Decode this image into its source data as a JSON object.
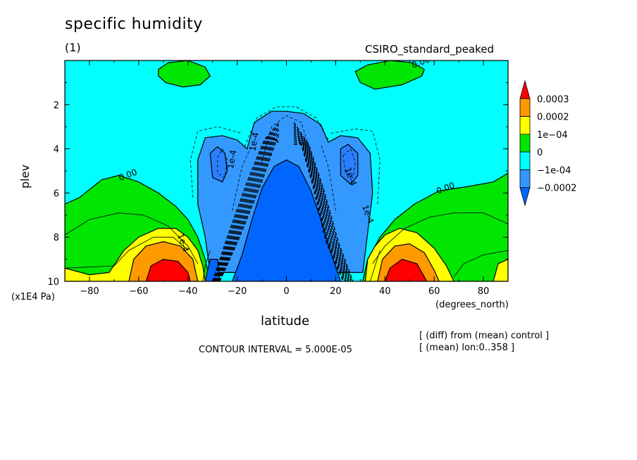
{
  "chart_data": {
    "type": "heatmap",
    "title": "specific humidity",
    "subtitle": "(1)",
    "model_label": "CSIRO_standard_peaked",
    "xlabel": "latitude",
    "ylabel": "plev",
    "y_units": "(x1E4 Pa)",
    "x_units": "(degrees_north)",
    "xlim": [
      -90,
      90
    ],
    "ylim": [
      10,
      0
    ],
    "x_ticks": [
      -80,
      -60,
      -40,
      -20,
      0,
      20,
      40,
      60,
      80
    ],
    "y_ticks": [
      2,
      4,
      6,
      8,
      10
    ],
    "contour_interval_text": "CONTOUR INTERVAL = 5.000E-05",
    "notes": [
      "[ (diff) from (mean) control ]",
      "[ (mean) lon:0..358 ]"
    ],
    "colorbar": {
      "labels": [
        "0.0003",
        "0.0002",
        "1e-04",
        "0",
        "-1e-04",
        "-0.0002"
      ],
      "colors": [
        "#ff0000",
        "#ff9900",
        "#ffff00",
        "#00e600",
        "#00ffff",
        "#3399ff",
        "#0066ff"
      ]
    },
    "contour_labels": [
      {
        "text": "0.00",
        "lat": 55,
        "plev": 0.2
      },
      {
        "text": "0.00",
        "lat": -64,
        "plev": 5.3
      },
      {
        "text": "0.00",
        "lat": 65,
        "plev": 5.9
      },
      {
        "text": "1e-4",
        "lat": -43,
        "plev": 8.3
      },
      {
        "text": "1e-4",
        "lat": -21,
        "plev": 4.5
      },
      {
        "text": "1e-4",
        "lat": 25,
        "plev": 5.3
      },
      {
        "text": "1e-4",
        "lat": 32,
        "plev": 7.0
      },
      {
        "text": "1e-4",
        "lat": -12,
        "plev": 3.7
      }
    ],
    "regions": [
      {
        "value": 5e-05,
        "color": "#00e600",
        "desc": "lower-left moist band",
        "poly": [
          [
            -90,
            6.5
          ],
          [
            -84,
            6.2
          ],
          [
            -75,
            5.4
          ],
          [
            -68,
            5.2
          ],
          [
            -60,
            5.5
          ],
          [
            -52,
            6.0
          ],
          [
            -45,
            6.6
          ],
          [
            -40,
            7.2
          ],
          [
            -36,
            8.0
          ],
          [
            -33,
            9.0
          ],
          [
            -31,
            10
          ],
          [
            -90,
            10
          ]
        ]
      },
      {
        "value": 5e-05,
        "color": "#00e600",
        "desc": "lower-right moist band",
        "poly": [
          [
            90,
            5.1
          ],
          [
            84,
            5.5
          ],
          [
            74,
            5.7
          ],
          [
            62,
            5.9
          ],
          [
            52,
            6.5
          ],
          [
            44,
            7.2
          ],
          [
            38,
            8.0
          ],
          [
            33,
            9.0
          ],
          [
            31,
            10
          ],
          [
            90,
            10
          ]
        ]
      },
      {
        "value": 5e-05,
        "color": "#00e600",
        "desc": "upper-left patch",
        "poly": [
          [
            -52,
            0.4
          ],
          [
            -48,
            0.1
          ],
          [
            -40,
            0.0
          ],
          [
            -33,
            0.3
          ],
          [
            -31,
            0.7
          ],
          [
            -35,
            1.1
          ],
          [
            -42,
            1.2
          ],
          [
            -49,
            1.0
          ],
          [
            -52,
            0.7
          ]
        ]
      },
      {
        "value": 5e-05,
        "color": "#00e600",
        "desc": "upper-right patch",
        "poly": [
          [
            28,
            0.5
          ],
          [
            33,
            0.2
          ],
          [
            42,
            0.0
          ],
          [
            51,
            0.1
          ],
          [
            56,
            0.4
          ],
          [
            55,
            0.7
          ],
          [
            47,
            1.1
          ],
          [
            36,
            1.3
          ],
          [
            30,
            1.0
          ]
        ]
      },
      {
        "value": 0.0001,
        "color": "#ffff00",
        "desc": "left lower-tropospheric max",
        "poly": [
          [
            -90,
            9.4
          ],
          [
            -80,
            9.7
          ],
          [
            -72,
            9.6
          ],
          [
            -66,
            8.6
          ],
          [
            -60,
            8.0
          ],
          [
            -52,
            7.6
          ],
          [
            -45,
            7.6
          ],
          [
            -40,
            8.0
          ],
          [
            -36,
            8.6
          ],
          [
            -34,
            9.3
          ],
          [
            -33,
            10
          ],
          [
            -90,
            10
          ]
        ]
      },
      {
        "value": 0.0001,
        "color": "#ffff00",
        "desc": "right lower-tropospheric max",
        "poly": [
          [
            32,
            10
          ],
          [
            33,
            9.0
          ],
          [
            36,
            8.4
          ],
          [
            40,
            7.9
          ],
          [
            46,
            7.6
          ],
          [
            53,
            7.8
          ],
          [
            60,
            8.5
          ],
          [
            65,
            9.3
          ],
          [
            68,
            10
          ]
        ]
      },
      {
        "value": 0.0001,
        "color": "#ffff00",
        "desc": "far right edge",
        "poly": [
          [
            84,
            10
          ],
          [
            86,
            9.2
          ],
          [
            90,
            9.0
          ],
          [
            90,
            10
          ]
        ]
      },
      {
        "value": 0.0002,
        "color": "#ff9900",
        "desc": "left inner",
        "poly": [
          [
            -64,
            10
          ],
          [
            -62,
            9.0
          ],
          [
            -57,
            8.4
          ],
          [
            -50,
            8.2
          ],
          [
            -43,
            8.4
          ],
          [
            -38,
            9.0
          ],
          [
            -36,
            10
          ]
        ]
      },
      {
        "value": 0.0002,
        "color": "#ff9900",
        "desc": "right inner",
        "poly": [
          [
            37,
            10
          ],
          [
            39,
            9.0
          ],
          [
            44,
            8.4
          ],
          [
            50,
            8.3
          ],
          [
            56,
            8.7
          ],
          [
            60,
            9.5
          ],
          [
            62,
            10
          ]
        ]
      },
      {
        "value": 0.0003,
        "color": "#ff0000",
        "desc": "left core",
        "poly": [
          [
            -57,
            10
          ],
          [
            -55,
            9.3
          ],
          [
            -50,
            9.0
          ],
          [
            -44,
            9.1
          ],
          [
            -40,
            9.6
          ],
          [
            -39,
            10
          ]
        ]
      },
      {
        "value": 0.0003,
        "color": "#ff0000",
        "desc": "right core",
        "poly": [
          [
            40,
            10
          ],
          [
            42,
            9.4
          ],
          [
            47,
            9.0
          ],
          [
            53,
            9.2
          ],
          [
            56,
            9.8
          ],
          [
            57,
            10
          ]
        ]
      },
      {
        "value": -0.0001,
        "color": "#3399ff",
        "desc": "tropical upper negative",
        "poly": [
          [
            -31,
            9.6
          ],
          [
            -33,
            8.0
          ],
          [
            -36,
            6.5
          ],
          [
            -36,
            4.5
          ],
          [
            -33,
            3.5
          ],
          [
            -26,
            3.4
          ],
          [
            -20,
            3.6
          ],
          [
            -16,
            4.0
          ],
          [
            -13,
            2.8
          ],
          [
            -6,
            2.3
          ],
          [
            0,
            2.3
          ],
          [
            7,
            2.4
          ],
          [
            14,
            2.9
          ],
          [
            17,
            3.7
          ],
          [
            22,
            3.4
          ],
          [
            29,
            3.5
          ],
          [
            34,
            4.2
          ],
          [
            35,
            6.0
          ],
          [
            33,
            7.8
          ],
          [
            31,
            9.6
          ]
        ]
      },
      {
        "value": -0.00015,
        "color": "#2a7fff",
        "desc": "left sub-core",
        "poly": [
          [
            -31,
            4.2
          ],
          [
            -28,
            3.9
          ],
          [
            -25,
            4.2
          ],
          [
            -24,
            5.0
          ],
          [
            -26,
            5.5
          ],
          [
            -30,
            5.3
          ]
        ]
      },
      {
        "value": -0.00015,
        "color": "#2a7fff",
        "desc": "right sub-core",
        "poly": [
          [
            22,
            4.0
          ],
          [
            25,
            3.8
          ],
          [
            29,
            4.2
          ],
          [
            29,
            5.2
          ],
          [
            26,
            5.6
          ],
          [
            22,
            5.2
          ]
        ]
      },
      {
        "value": -0.0002,
        "color": "#0066ff",
        "desc": "central deep column",
        "poly": [
          [
            -22,
            10
          ],
          [
            -18,
            8.8
          ],
          [
            -14,
            7.2
          ],
          [
            -10,
            5.8
          ],
          [
            -5,
            4.8
          ],
          [
            0,
            4.5
          ],
          [
            5,
            4.8
          ],
          [
            10,
            5.9
          ],
          [
            14,
            7.2
          ],
          [
            18,
            8.7
          ],
          [
            22,
            10
          ]
        ]
      },
      {
        "value": -0.0002,
        "color": "#0066ff",
        "desc": "left foot",
        "poly": [
          [
            -33,
            10
          ],
          [
            -31,
            9.0
          ],
          [
            -28,
            9.0
          ],
          [
            -27,
            10
          ]
        ]
      }
    ],
    "dashed_contours": [
      [
        [
          -38,
          6.2
        ],
        [
          -39,
          4.5
        ],
        [
          -36,
          3.2
        ],
        [
          -28,
          3.0
        ],
        [
          -18,
          3.3
        ]
      ],
      [
        [
          37,
          6.5
        ],
        [
          38,
          4.5
        ],
        [
          35,
          3.2
        ],
        [
          28,
          3.1
        ],
        [
          18,
          3.3
        ]
      ],
      [
        [
          -28,
          4.4
        ],
        [
          -26,
          4.0
        ],
        [
          -24,
          4.5
        ],
        [
          -25,
          5.3
        ],
        [
          -28,
          5.1
        ],
        [
          -28,
          4.4
        ]
      ],
      [
        [
          23,
          4.3
        ],
        [
          26,
          4.0
        ],
        [
          28,
          4.6
        ],
        [
          27,
          5.3
        ],
        [
          24,
          5.1
        ],
        [
          23,
          4.3
        ]
      ],
      [
        [
          -17,
          3.9
        ],
        [
          -12,
          2.6
        ],
        [
          -4,
          2.1
        ],
        [
          4,
          2.1
        ],
        [
          12,
          2.6
        ],
        [
          17,
          3.6
        ]
      ],
      [
        [
          -10,
          4.6
        ],
        [
          -6,
          3.0
        ],
        [
          0,
          2.5
        ],
        [
          6,
          2.8
        ],
        [
          10,
          4.2
        ]
      ],
      [
        [
          -22,
          6.8
        ],
        [
          -18,
          4.8
        ],
        [
          -14,
          3.8
        ]
      ],
      [
        [
          20,
          6.8
        ],
        [
          17,
          4.8
        ],
        [
          14,
          3.8
        ]
      ]
    ],
    "solid_contours": [
      [
        [
          -90,
          7.9
        ],
        [
          -80,
          7.2
        ],
        [
          -68,
          6.9
        ],
        [
          -58,
          7.0
        ],
        [
          -48,
          7.5
        ],
        [
          -40,
          8.4
        ],
        [
          -36,
          9.2
        ]
      ],
      [
        [
          90,
          7.4
        ],
        [
          80,
          6.9
        ],
        [
          68,
          6.9
        ],
        [
          58,
          7.1
        ],
        [
          48,
          7.6
        ],
        [
          40,
          8.4
        ],
        [
          35,
          9.2
        ]
      ],
      [
        [
          -90,
          9.4
        ],
        [
          -70,
          9.3
        ],
        [
          -64,
          8.6
        ],
        [
          -54,
          8.0
        ],
        [
          -46,
          8.0
        ],
        [
          -40,
          8.6
        ]
      ],
      [
        [
          -34,
          10
        ],
        [
          -33,
          9.3
        ],
        [
          -31,
          8.6
        ]
      ],
      [
        [
          34,
          10
        ],
        [
          36,
          9.3
        ],
        [
          38,
          8.6
        ]
      ],
      [
        [
          90,
          8.6
        ],
        [
          80,
          8.8
        ],
        [
          72,
          9.2
        ],
        [
          68,
          9.8
        ]
      ]
    ]
  }
}
